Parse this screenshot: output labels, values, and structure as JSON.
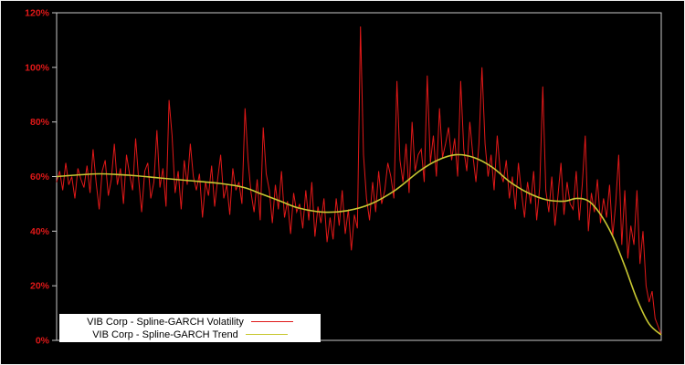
{
  "chart_data": {
    "type": "line",
    "title": "",
    "xlabel": "",
    "ylabel": "",
    "ylim": [
      0,
      120
    ],
    "grid": false,
    "background": "#000000",
    "frame_color": "#c8c8c8",
    "axis_label_color": "#e01818",
    "y_ticks": [
      0,
      20,
      40,
      60,
      80,
      100,
      120
    ],
    "y_tick_labels": [
      "0%",
      "20%",
      "40%",
      "60%",
      "80%",
      "100%",
      "120%"
    ],
    "legend": {
      "position": "bottom-left",
      "background": "#ffffff"
    },
    "series": [
      {
        "name": "VIB Corp - Spline-GARCH Volatility",
        "color": "#e01818",
        "style": "noisy-line",
        "values": [
          58,
          62,
          55,
          65,
          57,
          60,
          52,
          63,
          59,
          56,
          64,
          54,
          70,
          58,
          48,
          62,
          66,
          53,
          59,
          72,
          57,
          63,
          50,
          68,
          61,
          55,
          74,
          59,
          47,
          62,
          65,
          52,
          58,
          77,
          56,
          63,
          49,
          88,
          75,
          54,
          62,
          48,
          66,
          57,
          72,
          60,
          55,
          61,
          45,
          58,
          53,
          64,
          49,
          59,
          68,
          52,
          57,
          46,
          63,
          55,
          58,
          50,
          85,
          66,
          54,
          47,
          59,
          44,
          78,
          61,
          55,
          43,
          57,
          48,
          62,
          45,
          51,
          39,
          54,
          47,
          50,
          41,
          55,
          44,
          58,
          38,
          49,
          43,
          52,
          36,
          45,
          37,
          52,
          42,
          55,
          39,
          48,
          33,
          46,
          41,
          115,
          68,
          52,
          44,
          58,
          47,
          62,
          50,
          55,
          65,
          60,
          52,
          95,
          66,
          58,
          72,
          54,
          80,
          62,
          68,
          70,
          58,
          97,
          65,
          75,
          60,
          85,
          67,
          72,
          78,
          66,
          74,
          60,
          95,
          70,
          62,
          80,
          68,
          58,
          72,
          100,
          72,
          60,
          68,
          55,
          75,
          62,
          58,
          66,
          52,
          60,
          48,
          65,
          54,
          45,
          58,
          50,
          62,
          44,
          56,
          93,
          55,
          47,
          60,
          42,
          53,
          65,
          46,
          58,
          50,
          48,
          62,
          44,
          57,
          75,
          40,
          54,
          47,
          59,
          43,
          52,
          45,
          57,
          38,
          50,
          68,
          35,
          55,
          30,
          42,
          35,
          55,
          28,
          40,
          20,
          14,
          18,
          8,
          5,
          2
        ]
      },
      {
        "name": "VIB Corp - Spline-GARCH Trend",
        "color": "#c8c832",
        "style": "smooth-line",
        "points": [
          [
            0.0,
            60
          ],
          [
            0.03,
            60.5
          ],
          [
            0.07,
            61
          ],
          [
            0.12,
            60.5
          ],
          [
            0.17,
            59.5
          ],
          [
            0.22,
            58.5
          ],
          [
            0.27,
            57.5
          ],
          [
            0.31,
            56
          ],
          [
            0.34,
            53.5
          ],
          [
            0.37,
            51
          ],
          [
            0.4,
            48.5
          ],
          [
            0.44,
            47
          ],
          [
            0.48,
            47.5
          ],
          [
            0.52,
            50
          ],
          [
            0.56,
            55
          ],
          [
            0.6,
            62
          ],
          [
            0.63,
            66
          ],
          [
            0.66,
            68
          ],
          [
            0.69,
            67
          ],
          [
            0.72,
            63.5
          ],
          [
            0.75,
            58
          ],
          [
            0.78,
            54
          ],
          [
            0.81,
            51.5
          ],
          [
            0.84,
            51
          ],
          [
            0.86,
            52
          ],
          [
            0.88,
            51
          ],
          [
            0.9,
            46
          ],
          [
            0.92,
            38
          ],
          [
            0.94,
            27
          ],
          [
            0.96,
            15
          ],
          [
            0.98,
            6
          ],
          [
            1.0,
            2
          ]
        ]
      }
    ]
  }
}
